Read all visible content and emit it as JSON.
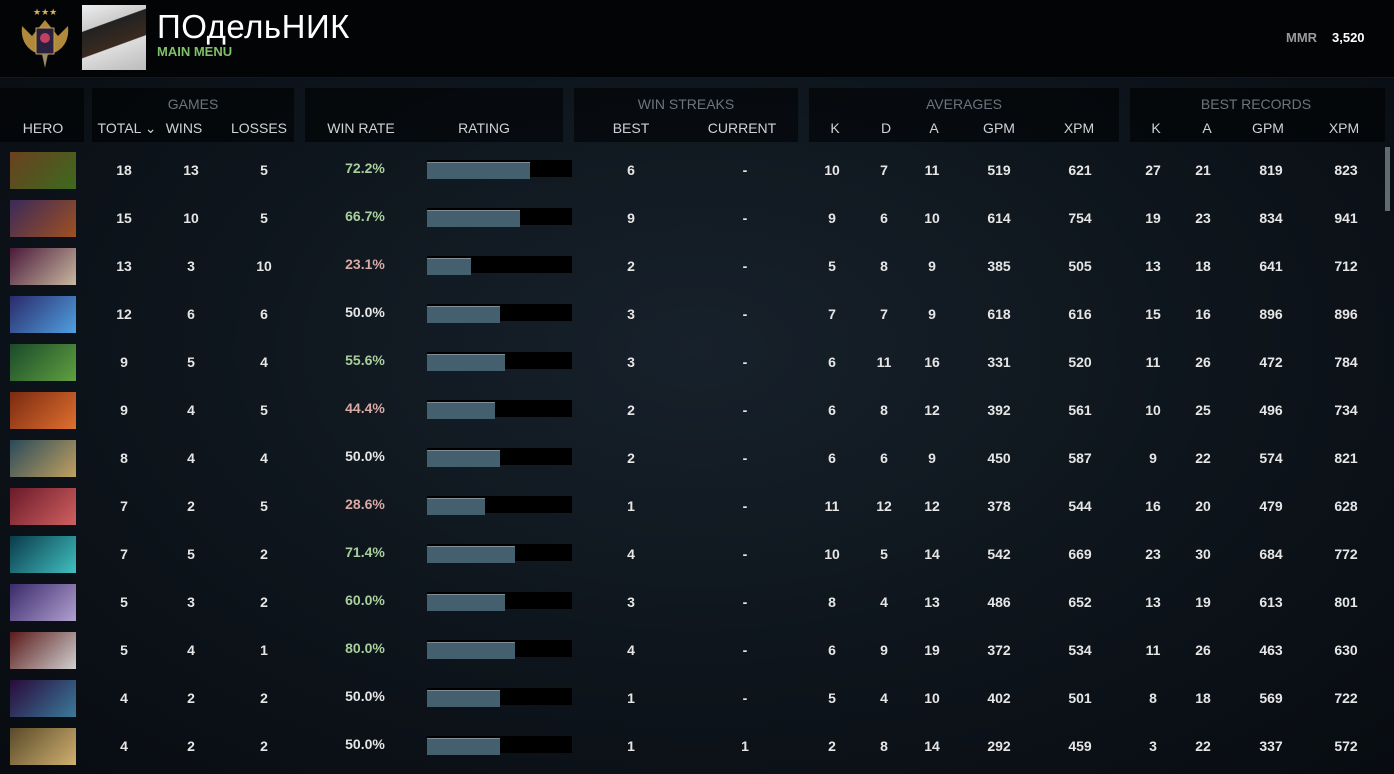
{
  "header": {
    "username": "ПОдельНИК",
    "main_menu": "MAIN MENU",
    "mmr_label": "MMR",
    "mmr_value": "3,520"
  },
  "table": {
    "groups": {
      "games": "GAMES",
      "win_streaks": "WIN STREAKS",
      "averages": "AVERAGES",
      "best_records": "BEST RECORDS"
    },
    "columns": {
      "hero": "HERO",
      "total": "TOTAL ⌄",
      "wins": "WINS",
      "losses": "LOSSES",
      "win_rate": "WIN RATE",
      "rating": "RATING",
      "best": "BEST",
      "current": "CURRENT",
      "avg_k": "K",
      "avg_d": "D",
      "avg_a": "A",
      "avg_gpm": "GPM",
      "avg_xpm": "XPM",
      "best_k": "K",
      "best_a": "A",
      "best_gpm": "GPM",
      "best_xpm": "XPM"
    },
    "sorted_by": "total",
    "colors": {
      "win_rate_high": "#a9cf9d",
      "win_rate_low": "#d9aaa6",
      "win_rate_even": "#e6e6e6",
      "bar_fill": "#44606e"
    },
    "rows": [
      {
        "portrait": [
          "#6a4020",
          "#3d6a1e"
        ],
        "total": "18",
        "wins": "13",
        "losses": "5",
        "win_rate": "72.2%",
        "rating": 0.71,
        "best": "6",
        "current": "-",
        "k": "10",
        "d": "7",
        "a": "11",
        "gpm": "519",
        "xpm": "621",
        "bk": "27",
        "ba": "21",
        "bgpm": "819",
        "bxpm": "823"
      },
      {
        "portrait": [
          "#3a2a5a",
          "#a05020"
        ],
        "total": "15",
        "wins": "10",
        "losses": "5",
        "win_rate": "66.7%",
        "rating": 0.64,
        "best": "9",
        "current": "-",
        "k": "9",
        "d": "6",
        "a": "10",
        "gpm": "614",
        "xpm": "754",
        "bk": "19",
        "ba": "23",
        "bgpm": "834",
        "bxpm": "941"
      },
      {
        "portrait": [
          "#4a1a3a",
          "#c8b8a0"
        ],
        "total": "13",
        "wins": "3",
        "losses": "10",
        "win_rate": "23.1%",
        "rating": 0.3,
        "best": "2",
        "current": "-",
        "k": "5",
        "d": "8",
        "a": "9",
        "gpm": "385",
        "xpm": "505",
        "bk": "13",
        "ba": "18",
        "bgpm": "641",
        "bxpm": "712"
      },
      {
        "portrait": [
          "#2a2a6a",
          "#50a0e0"
        ],
        "total": "12",
        "wins": "6",
        "losses": "6",
        "win_rate": "50.0%",
        "rating": 0.5,
        "best": "3",
        "current": "-",
        "k": "7",
        "d": "7",
        "a": "9",
        "gpm": "618",
        "xpm": "616",
        "bk": "15",
        "ba": "16",
        "bgpm": "896",
        "bxpm": "896"
      },
      {
        "portrait": [
          "#1a4a2a",
          "#60a040"
        ],
        "total": "9",
        "wins": "5",
        "losses": "4",
        "win_rate": "55.6%",
        "rating": 0.54,
        "best": "3",
        "current": "-",
        "k": "6",
        "d": "11",
        "a": "16",
        "gpm": "331",
        "xpm": "520",
        "bk": "11",
        "ba": "26",
        "bgpm": "472",
        "bxpm": "784"
      },
      {
        "portrait": [
          "#7a2a10",
          "#e07030"
        ],
        "total": "9",
        "wins": "4",
        "losses": "5",
        "win_rate": "44.4%",
        "rating": 0.47,
        "best": "2",
        "current": "-",
        "k": "6",
        "d": "8",
        "a": "12",
        "gpm": "392",
        "xpm": "561",
        "bk": "10",
        "ba": "25",
        "bgpm": "496",
        "bxpm": "734"
      },
      {
        "portrait": [
          "#2a4a5a",
          "#c0a060"
        ],
        "total": "8",
        "wins": "4",
        "losses": "4",
        "win_rate": "50.0%",
        "rating": 0.5,
        "best": "2",
        "current": "-",
        "k": "6",
        "d": "6",
        "a": "9",
        "gpm": "450",
        "xpm": "587",
        "bk": "9",
        "ba": "22",
        "bgpm": "574",
        "bxpm": "821"
      },
      {
        "portrait": [
          "#6a1a2a",
          "#d06060"
        ],
        "total": "7",
        "wins": "2",
        "losses": "5",
        "win_rate": "28.6%",
        "rating": 0.4,
        "best": "1",
        "current": "-",
        "k": "11",
        "d": "12",
        "a": "12",
        "gpm": "378",
        "xpm": "544",
        "bk": "16",
        "ba": "20",
        "bgpm": "479",
        "bxpm": "628"
      },
      {
        "portrait": [
          "#0a3a4a",
          "#40c0c0"
        ],
        "total": "7",
        "wins": "5",
        "losses": "2",
        "win_rate": "71.4%",
        "rating": 0.61,
        "best": "4",
        "current": "-",
        "k": "10",
        "d": "5",
        "a": "14",
        "gpm": "542",
        "xpm": "669",
        "bk": "23",
        "ba": "30",
        "bgpm": "684",
        "bxpm": "772"
      },
      {
        "portrait": [
          "#3a2a6a",
          "#b0a0d0"
        ],
        "total": "5",
        "wins": "3",
        "losses": "2",
        "win_rate": "60.0%",
        "rating": 0.54,
        "best": "3",
        "current": "-",
        "k": "8",
        "d": "4",
        "a": "13",
        "gpm": "486",
        "xpm": "652",
        "bk": "13",
        "ba": "19",
        "bgpm": "613",
        "bxpm": "801"
      },
      {
        "portrait": [
          "#5a1a1a",
          "#d0d0d0"
        ],
        "total": "5",
        "wins": "4",
        "losses": "1",
        "win_rate": "80.0%",
        "rating": 0.61,
        "best": "4",
        "current": "-",
        "k": "6",
        "d": "9",
        "a": "19",
        "gpm": "372",
        "xpm": "534",
        "bk": "11",
        "ba": "26",
        "bgpm": "463",
        "bxpm": "630"
      },
      {
        "portrait": [
          "#2a0a3a",
          "#3a7a9a"
        ],
        "total": "4",
        "wins": "2",
        "losses": "2",
        "win_rate": "50.0%",
        "rating": 0.5,
        "best": "1",
        "current": "-",
        "k": "5",
        "d": "4",
        "a": "10",
        "gpm": "402",
        "xpm": "501",
        "bk": "8",
        "ba": "18",
        "bgpm": "569",
        "bxpm": "722"
      },
      {
        "portrait": [
          "#5a4a2a",
          "#d0b070"
        ],
        "total": "4",
        "wins": "2",
        "losses": "2",
        "win_rate": "50.0%",
        "rating": 0.5,
        "best": "1",
        "current": "1",
        "k": "2",
        "d": "8",
        "a": "14",
        "gpm": "292",
        "xpm": "459",
        "bk": "3",
        "ba": "22",
        "bgpm": "337",
        "bxpm": "572"
      }
    ]
  }
}
